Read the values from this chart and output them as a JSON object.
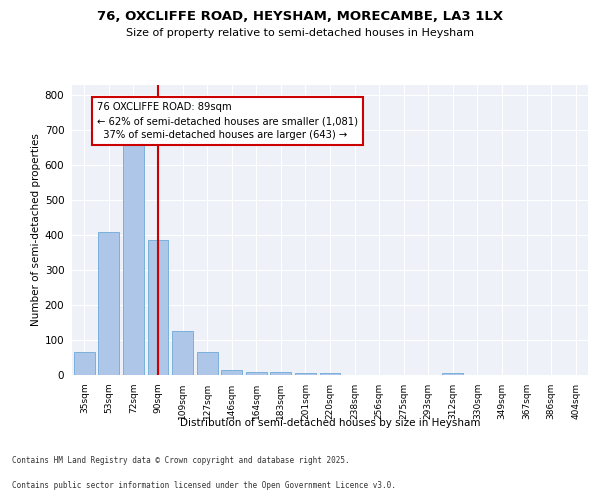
{
  "title1": "76, OXCLIFFE ROAD, HEYSHAM, MORECAMBE, LA3 1LX",
  "title2": "Size of property relative to semi-detached houses in Heysham",
  "xlabel": "Distribution of semi-detached houses by size in Heysham",
  "ylabel": "Number of semi-detached properties",
  "categories": [
    "35sqm",
    "53sqm",
    "72sqm",
    "90sqm",
    "109sqm",
    "127sqm",
    "146sqm",
    "164sqm",
    "183sqm",
    "201sqm",
    "220sqm",
    "238sqm",
    "256sqm",
    "275sqm",
    "293sqm",
    "312sqm",
    "330sqm",
    "349sqm",
    "367sqm",
    "386sqm",
    "404sqm"
  ],
  "values": [
    65,
    410,
    665,
    385,
    125,
    65,
    15,
    10,
    8,
    5,
    5,
    0,
    0,
    0,
    0,
    7,
    0,
    0,
    0,
    0,
    0
  ],
  "bar_color": "#aec6e8",
  "bar_edge_color": "#5a9fd4",
  "vline_x_index": 3,
  "vline_color": "#cc0000",
  "annotation_text": "76 OXCLIFFE ROAD: 89sqm\n← 62% of semi-detached houses are smaller (1,081)\n  37% of semi-detached houses are larger (643) →",
  "annotation_box_color": "#ffffff",
  "annotation_box_edge": "#cc0000",
  "footer1": "Contains HM Land Registry data © Crown copyright and database right 2025.",
  "footer2": "Contains public sector information licensed under the Open Government Licence v3.0.",
  "background_color": "#eef2f8",
  "ylim": [
    0,
    830
  ],
  "yticks": [
    0,
    100,
    200,
    300,
    400,
    500,
    600,
    700,
    800
  ]
}
